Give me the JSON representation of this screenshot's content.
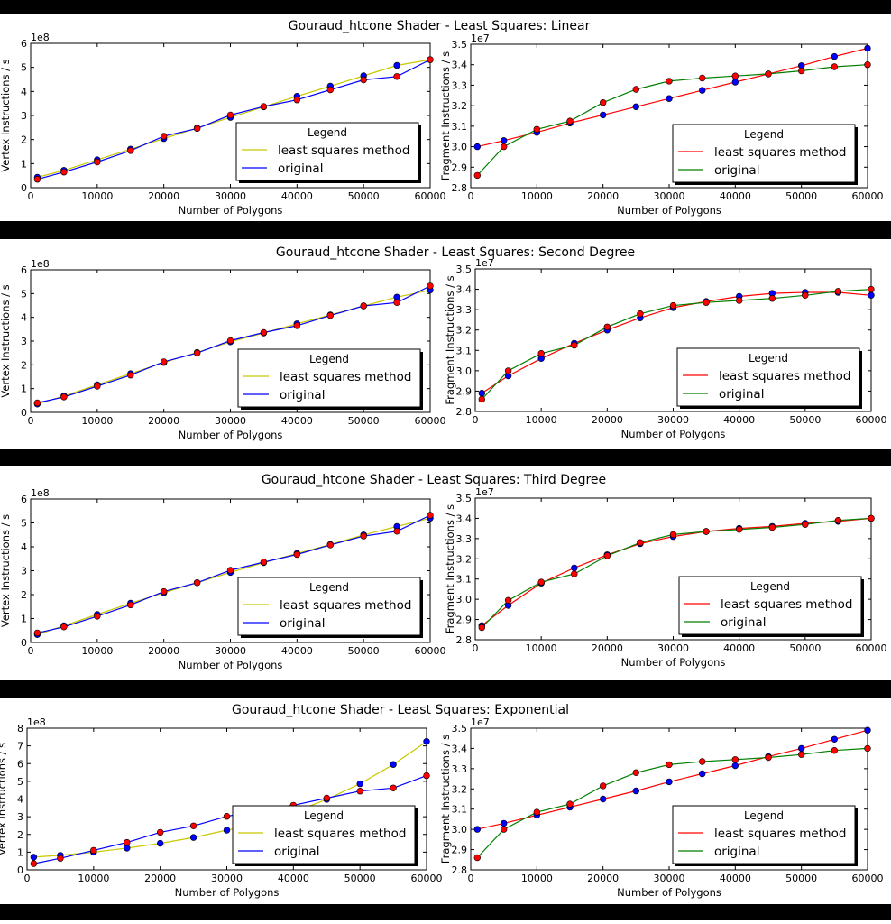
{
  "figures": [
    {
      "title": "Gouraud_htcone Shader - Least Squares: Linear"
    },
    {
      "title": "Gouraud_htcone Shader - Least Squares: Second Degree"
    },
    {
      "title": "Gouraud_htcone Shader - Least Squares: Third Degree"
    },
    {
      "title": "Gouraud_htcone Shader - Least Squares: Exponential"
    }
  ],
  "colors": {
    "left_fit_line": "#c8c800",
    "left_original_line": "#0000ff",
    "right_fit_line": "#ff0000",
    "right_original_line": "#007f00",
    "marker_blue": "#0000ff",
    "marker_red": "#ff0000",
    "band": "#000000"
  },
  "chart_data": [
    {
      "type": "line",
      "title": "Gouraud_htcone Shader - Least Squares: Linear",
      "xlabel": "Number of Polygons",
      "ylabel": "Vertex Instructions / s",
      "y_exponent": "1e8",
      "xlim": [
        0,
        60000
      ],
      "ylim": [
        0,
        6
      ],
      "xticks": [
        "0",
        "10000",
        "20000",
        "30000",
        "40000",
        "50000",
        "60000"
      ],
      "yticks": [
        "0",
        "1",
        "2",
        "3",
        "4",
        "5",
        "6"
      ],
      "legend": {
        "title": "Legend",
        "position": "lower right"
      },
      "x": [
        1000,
        5000,
        10000,
        15000,
        20000,
        25000,
        30000,
        35000,
        40000,
        45000,
        50000,
        55000,
        60000
      ],
      "series": [
        {
          "name": "least squares method",
          "values": [
            0.43,
            0.72,
            1.16,
            1.6,
            2.04,
            2.48,
            2.92,
            3.36,
            3.8,
            4.22,
            4.65,
            5.08,
            5.32
          ]
        },
        {
          "name": "original",
          "values": [
            0.35,
            0.65,
            1.07,
            1.54,
            2.14,
            2.46,
            3.02,
            3.37,
            3.65,
            4.07,
            4.48,
            4.62,
            5.32
          ]
        }
      ]
    },
    {
      "type": "line",
      "title": "Gouraud_htcone Shader - Least Squares: Linear",
      "xlabel": "Number of Polygons",
      "ylabel": "Fragment Instructions / s",
      "y_exponent": "1e7",
      "xlim": [
        0,
        60000
      ],
      "ylim": [
        2.8,
        3.5
      ],
      "xticks": [
        "0",
        "10000",
        "20000",
        "30000",
        "40000",
        "50000",
        "60000"
      ],
      "yticks": [
        "2.8",
        "2.9",
        "3.0",
        "3.1",
        "3.2",
        "3.3",
        "3.4",
        "3.5"
      ],
      "legend": {
        "title": "Legend",
        "position": "lower right"
      },
      "x": [
        1000,
        5000,
        10000,
        15000,
        20000,
        25000,
        30000,
        35000,
        40000,
        45000,
        50000,
        55000,
        60000
      ],
      "series": [
        {
          "name": "least squares method",
          "values": [
            3.0,
            3.03,
            3.07,
            3.115,
            3.155,
            3.195,
            3.235,
            3.275,
            3.315,
            3.355,
            3.395,
            3.44,
            3.48
          ]
        },
        {
          "name": "original",
          "values": [
            2.86,
            3.0,
            3.085,
            3.125,
            3.215,
            3.28,
            3.32,
            3.335,
            3.345,
            3.355,
            3.37,
            3.39,
            3.4
          ]
        }
      ]
    },
    {
      "type": "line",
      "title": "Gouraud_htcone Shader - Least Squares: Second Degree",
      "xlabel": "Number of Polygons",
      "ylabel": "Vertex Instructions / s",
      "y_exponent": "1e8",
      "xlim": [
        0,
        60000
      ],
      "ylim": [
        0,
        6
      ],
      "xticks": [
        "0",
        "10000",
        "20000",
        "30000",
        "40000",
        "50000",
        "60000"
      ],
      "yticks": [
        "0",
        "1",
        "2",
        "3",
        "4",
        "5",
        "6"
      ],
      "legend": {
        "title": "Legend",
        "position": "lower right"
      },
      "x": [
        1000,
        5000,
        10000,
        15000,
        20000,
        25000,
        30000,
        35000,
        40000,
        45000,
        50000,
        55000,
        60000
      ],
      "series": [
        {
          "name": "least squares method",
          "values": [
            0.35,
            0.69,
            1.16,
            1.63,
            2.1,
            2.52,
            2.97,
            3.34,
            3.73,
            4.1,
            4.48,
            4.85,
            5.15
          ]
        },
        {
          "name": "original",
          "values": [
            0.4,
            0.65,
            1.1,
            1.57,
            2.13,
            2.5,
            3.02,
            3.36,
            3.65,
            4.08,
            4.48,
            4.62,
            5.32
          ]
        }
      ]
    },
    {
      "type": "line",
      "title": "Gouraud_htcone Shader - Least Squares: Second Degree",
      "xlabel": "Number of Polygons",
      "ylabel": "Fragment Instructions / s",
      "y_exponent": "1e7",
      "xlim": [
        0,
        60000
      ],
      "ylim": [
        2.8,
        3.5
      ],
      "xticks": [
        "0",
        "10000",
        "20000",
        "30000",
        "40000",
        "50000",
        "60000"
      ],
      "yticks": [
        "2.8",
        "2.9",
        "3.0",
        "3.1",
        "3.2",
        "3.3",
        "3.4",
        "3.5"
      ],
      "legend": {
        "title": "Legend",
        "position": "lower right"
      },
      "x": [
        1000,
        5000,
        10000,
        15000,
        20000,
        25000,
        30000,
        35000,
        40000,
        45000,
        50000,
        55000,
        60000
      ],
      "series": [
        {
          "name": "least squares method",
          "values": [
            2.89,
            2.975,
            3.06,
            3.135,
            3.2,
            3.26,
            3.31,
            3.34,
            3.365,
            3.38,
            3.385,
            3.385,
            3.37
          ]
        },
        {
          "name": "original",
          "values": [
            2.86,
            3.0,
            3.085,
            3.125,
            3.215,
            3.28,
            3.32,
            3.335,
            3.345,
            3.355,
            3.37,
            3.39,
            3.4
          ]
        }
      ]
    },
    {
      "type": "line",
      "title": "Gouraud_htcone Shader - Least Squares: Third Degree",
      "xlabel": "Number of Polygons",
      "ylabel": "Vertex Instructions / s",
      "y_exponent": "1e8",
      "xlim": [
        0,
        60000
      ],
      "ylim": [
        0,
        6
      ],
      "xticks": [
        "0",
        "10000",
        "20000",
        "30000",
        "40000",
        "50000",
        "60000"
      ],
      "yticks": [
        "0",
        "1",
        "2",
        "3",
        "4",
        "5",
        "6"
      ],
      "legend": {
        "title": "Legend",
        "position": "lower right"
      },
      "x": [
        1000,
        5000,
        10000,
        15000,
        20000,
        25000,
        30000,
        35000,
        40000,
        45000,
        50000,
        55000,
        60000
      ],
      "series": [
        {
          "name": "least squares method",
          "values": [
            0.33,
            0.7,
            1.17,
            1.64,
            2.08,
            2.5,
            2.93,
            3.34,
            3.72,
            4.1,
            4.5,
            4.85,
            5.2
          ]
        },
        {
          "name": "original",
          "values": [
            0.4,
            0.65,
            1.1,
            1.57,
            2.13,
            2.5,
            3.02,
            3.36,
            3.68,
            4.08,
            4.45,
            4.65,
            5.32
          ]
        }
      ]
    },
    {
      "type": "line",
      "title": "Gouraud_htcone Shader - Least Squares: Third Degree",
      "xlabel": "Number of Polygons",
      "ylabel": "Fragment Instructions / s",
      "y_exponent": "1e7",
      "xlim": [
        0,
        60000
      ],
      "ylim": [
        2.8,
        3.5
      ],
      "xticks": [
        "0",
        "10000",
        "20000",
        "30000",
        "40000",
        "50000",
        "60000"
      ],
      "yticks": [
        "2.8",
        "2.9",
        "3.0",
        "3.1",
        "3.2",
        "3.3",
        "3.4",
        "3.5"
      ],
      "legend": {
        "title": "Legend",
        "position": "lower right"
      },
      "x": [
        1000,
        5000,
        10000,
        15000,
        20000,
        25000,
        30000,
        35000,
        40000,
        45000,
        50000,
        55000,
        60000
      ],
      "series": [
        {
          "name": "least squares method",
          "values": [
            2.87,
            2.97,
            3.08,
            3.155,
            3.22,
            3.275,
            3.31,
            3.335,
            3.35,
            3.36,
            3.375,
            3.385,
            3.4
          ]
        },
        {
          "name": "original",
          "values": [
            2.86,
            2.995,
            3.085,
            3.125,
            3.215,
            3.28,
            3.32,
            3.335,
            3.345,
            3.355,
            3.37,
            3.39,
            3.4
          ]
        }
      ]
    },
    {
      "type": "line",
      "title": "Gouraud_htcone Shader - Least Squares: Exponential",
      "xlabel": "Number of Polygons",
      "ylabel": "Vertex Instructions / s",
      "y_exponent": "1e8",
      "xlim": [
        0,
        60000
      ],
      "ylim": [
        0,
        8
      ],
      "xticks": [
        "0",
        "10000",
        "20000",
        "30000",
        "40000",
        "50000",
        "60000"
      ],
      "yticks": [
        "0",
        "1",
        "2",
        "3",
        "4",
        "5",
        "6",
        "7",
        "8"
      ],
      "legend": {
        "title": "Legend",
        "position": "lower right"
      },
      "x": [
        1000,
        5000,
        10000,
        15000,
        20000,
        25000,
        30000,
        35000,
        40000,
        45000,
        50000,
        55000,
        60000
      ],
      "series": [
        {
          "name": "least squares method",
          "values": [
            0.72,
            0.82,
            1.0,
            1.23,
            1.5,
            1.83,
            2.24,
            2.6,
            3.25,
            3.98,
            4.86,
            5.95,
            7.25
          ]
        },
        {
          "name": "original",
          "values": [
            0.35,
            0.65,
            1.1,
            1.55,
            2.12,
            2.48,
            3.02,
            3.36,
            3.65,
            4.05,
            4.45,
            4.62,
            5.32
          ]
        }
      ]
    },
    {
      "type": "line",
      "title": "Gouraud_htcone Shader - Least Squares: Exponential",
      "xlabel": "Number of Polygons",
      "ylabel": "Fragment Instructions / s",
      "y_exponent": "1e7",
      "xlim": [
        0,
        60000
      ],
      "ylim": [
        2.8,
        3.5
      ],
      "xticks": [
        "0",
        "10000",
        "20000",
        "30000",
        "40000",
        "50000",
        "60000"
      ],
      "yticks": [
        "2.8",
        "2.9",
        "3.0",
        "3.1",
        "3.2",
        "3.3",
        "3.4",
        "3.5"
      ],
      "legend": {
        "title": "Legend",
        "position": "lower right"
      },
      "x": [
        1000,
        5000,
        10000,
        15000,
        20000,
        25000,
        30000,
        35000,
        40000,
        45000,
        50000,
        55000,
        60000
      ],
      "series": [
        {
          "name": "least squares method",
          "values": [
            3.0,
            3.03,
            3.07,
            3.11,
            3.15,
            3.19,
            3.235,
            3.275,
            3.315,
            3.36,
            3.4,
            3.445,
            3.49
          ]
        },
        {
          "name": "original",
          "values": [
            2.86,
            3.0,
            3.085,
            3.125,
            3.215,
            3.28,
            3.32,
            3.335,
            3.345,
            3.355,
            3.37,
            3.39,
            3.4
          ]
        }
      ]
    }
  ]
}
